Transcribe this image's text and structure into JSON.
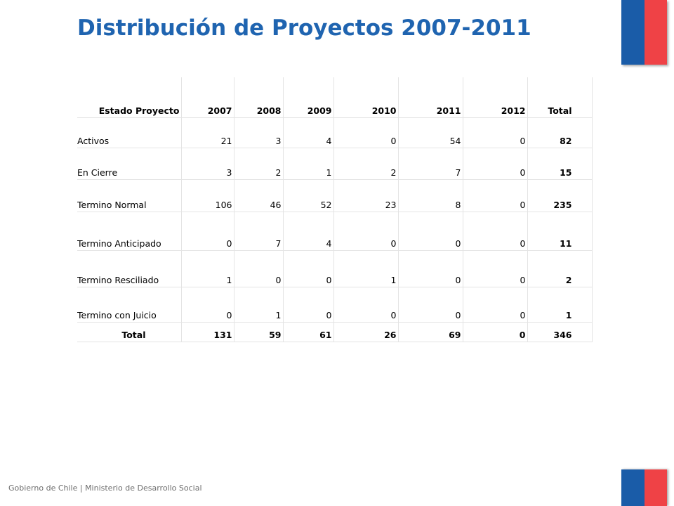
{
  "title": "Distribución de Proyectos 2007-2011",
  "footer": "Gobierno de Chile | Ministerio de Desarrollo Social",
  "colors": {
    "title": "#1f64b0",
    "flag_blue": "#1a5ca8",
    "flag_red": "#ef4246"
  },
  "table": {
    "headers": [
      "Estado Proyecto",
      "2007",
      "2008",
      "2009",
      "2010",
      "2011",
      "2012",
      "Total"
    ],
    "rows": [
      {
        "label": "Activos",
        "values": [
          "21",
          "3",
          "4",
          "0",
          "54",
          "0"
        ],
        "total": "82"
      },
      {
        "label": "En Cierre",
        "values": [
          "3",
          "2",
          "1",
          "2",
          "7",
          "0"
        ],
        "total": "15"
      },
      {
        "label": "Termino Normal",
        "values": [
          "106",
          "46",
          "52",
          "23",
          "8",
          "0"
        ],
        "total": "235"
      },
      {
        "label": "Termino Anticipado",
        "values": [
          "0",
          "7",
          "4",
          "0",
          "0",
          "0"
        ],
        "total": "11"
      },
      {
        "label": "Termino Resciliado",
        "values": [
          "1",
          "0",
          "0",
          "1",
          "0",
          "0"
        ],
        "total": "2"
      },
      {
        "label": "Termino con Juicio",
        "values": [
          "0",
          "1",
          "0",
          "0",
          "0",
          "0"
        ],
        "total": "1"
      }
    ],
    "footer_row": {
      "label": "Total",
      "values": [
        "131",
        "59",
        "61",
        "26",
        "69",
        "0"
      ],
      "total": "346"
    }
  }
}
